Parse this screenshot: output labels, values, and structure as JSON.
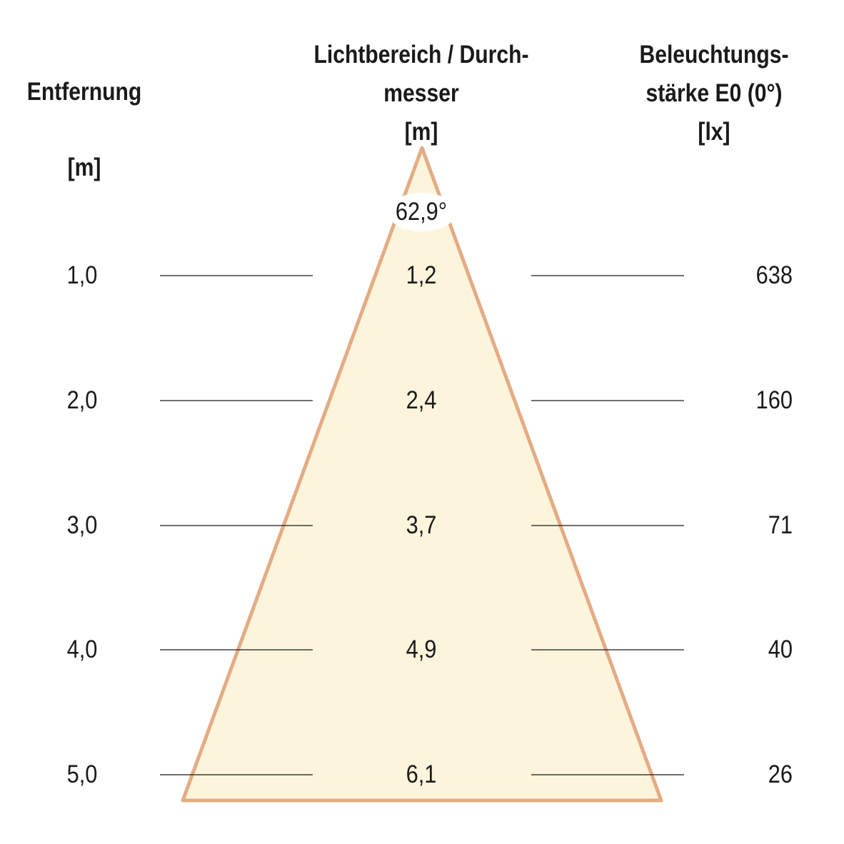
{
  "headers": {
    "distance": {
      "lines": [
        "Entfernung"
      ],
      "unit": "[m]"
    },
    "diameter": {
      "lines": [
        "Lichtbereich / Durch-",
        "messer"
      ],
      "unit": "[m]"
    },
    "illuminance": {
      "lines": [
        "Beleuchtungs-",
        "stärke E0 (0°)"
      ],
      "unit": "[lx]"
    }
  },
  "beam_angle": "62,9°",
  "rows": [
    {
      "distance": "1,0",
      "diameter": "1,2",
      "illuminance": "638"
    },
    {
      "distance": "2,0",
      "diameter": "2,4",
      "illuminance": "160"
    },
    {
      "distance": "3,0",
      "diameter": "3,7",
      "illuminance": "71"
    },
    {
      "distance": "4,0",
      "diameter": "4,9",
      "illuminance": "40"
    },
    {
      "distance": "5,0",
      "diameter": "6,1",
      "illuminance": "26"
    }
  ],
  "colors": {
    "cone_fill": "#fdf4dc",
    "cone_edge": "#e3ac84",
    "guide_line": "#1a1a1a",
    "text": "#1a1a1a"
  }
}
